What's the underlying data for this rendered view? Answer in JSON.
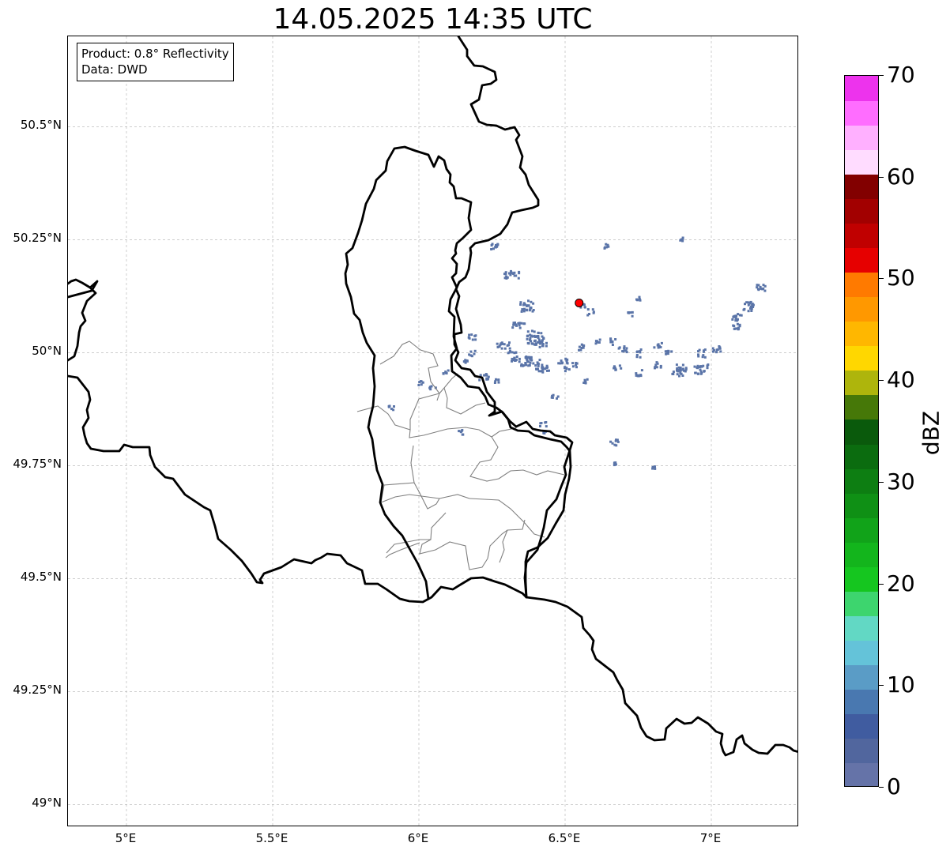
{
  "title": "14.05.2025 14:35 UTC",
  "info": {
    "product": "Product: 0.8° Reflectivity",
    "data": "Data: DWD"
  },
  "map": {
    "extent": {
      "lon_min": 4.8,
      "lon_max": 7.3,
      "lat_min": 48.95,
      "lat_max": 50.7
    },
    "lat_ticks": [
      {
        "value": 50.5,
        "label": "50.5°N"
      },
      {
        "value": 50.25,
        "label": "50.25°N"
      },
      {
        "value": 50.0,
        "label": "50°N"
      },
      {
        "value": 49.75,
        "label": "49.75°N"
      },
      {
        "value": 49.5,
        "label": "49.5°N"
      },
      {
        "value": 49.25,
        "label": "49.25°N"
      },
      {
        "value": 49.0,
        "label": "49°N"
      }
    ],
    "lon_ticks": [
      {
        "value": 5.0,
        "label": "5°E"
      },
      {
        "value": 5.5,
        "label": "5.5°E"
      },
      {
        "value": 6.0,
        "label": "6°E"
      },
      {
        "value": 6.5,
        "label": "6.5°E"
      },
      {
        "value": 7.0,
        "label": "7°E"
      }
    ],
    "radar_site": {
      "lon": 6.548,
      "lat": 50.11,
      "color": "#ff0000"
    },
    "echo_color": "#5a74a8",
    "border_color": "#000000",
    "canton_color": "#808080"
  },
  "colorbar": {
    "label": "dBZ",
    "min": 0,
    "max": 70,
    "ticks": [
      {
        "value": 0,
        "label": "0"
      },
      {
        "value": 10,
        "label": "10"
      },
      {
        "value": 20,
        "label": "20"
      },
      {
        "value": 30,
        "label": "30"
      },
      {
        "value": 40,
        "label": "40"
      },
      {
        "value": 50,
        "label": "50"
      },
      {
        "value": 60,
        "label": "60"
      },
      {
        "value": 70,
        "label": "70"
      }
    ],
    "colors": [
      "#6573a8",
      "#51669e",
      "#405ca0",
      "#4978b0",
      "#5a9cc6",
      "#64c3d9",
      "#62d8c4",
      "#3dd56e",
      "#15c61f",
      "#13b51c",
      "#11a319",
      "#0f9015",
      "#0d7e12",
      "#0b6c0f",
      "#0a5a0c",
      "#467808",
      "#aeb50c",
      "#ffd700",
      "#ffb700",
      "#ff9800",
      "#ff7a00",
      "#e60000",
      "#c00000",
      "#a20000",
      "#820000",
      "#ffdcff",
      "#ffb0ff",
      "#ff6dff",
      "#ed33ed"
    ]
  }
}
